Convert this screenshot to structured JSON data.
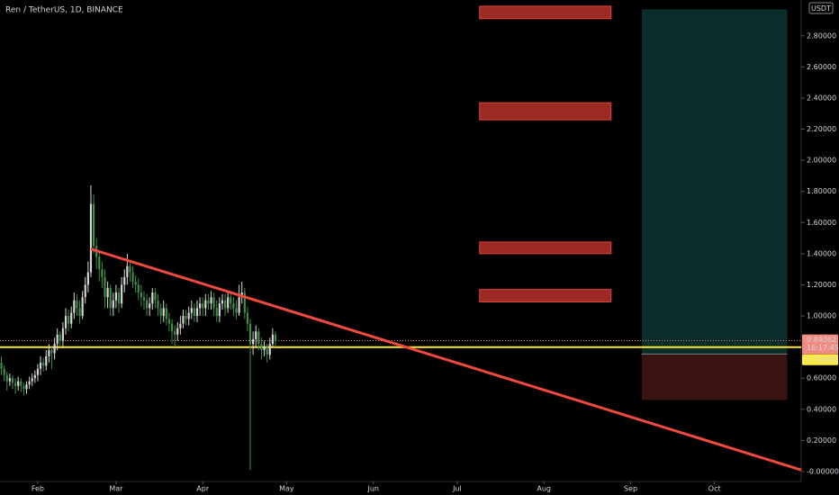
{
  "chart_data": {
    "type": "candlestick",
    "title": "Ren / TetherUS, 1D, BINANCE",
    "y_axis_unit": "USDT",
    "up_color": "#d6d6d6",
    "down_color": "#3f8f4a",
    "x": [
      19,
      20,
      21,
      22,
      23,
      24,
      25,
      26,
      27,
      28,
      29,
      30,
      31,
      32,
      33,
      34,
      35,
      36,
      37,
      38,
      39,
      40,
      41,
      42,
      43,
      44,
      45,
      46,
      47,
      48,
      49,
      50,
      51,
      52,
      53,
      54,
      55,
      56,
      57,
      58,
      59,
      60,
      61,
      62,
      63,
      64,
      65,
      66,
      67,
      68,
      69,
      70,
      71,
      72,
      73,
      74,
      75,
      76,
      77,
      78,
      79,
      80,
      81,
      82,
      83,
      84,
      85,
      86,
      87,
      88,
      89,
      90,
      91,
      92,
      93,
      94,
      95,
      96,
      97,
      98,
      99,
      100,
      101,
      102,
      103,
      104,
      105,
      106,
      107,
      108,
      109,
      110,
      111,
      112,
      113,
      114,
      115,
      116,
      117
    ],
    "open": [
      0.7,
      0.66,
      0.62,
      0.58,
      0.6,
      0.57,
      0.55,
      0.58,
      0.55,
      0.53,
      0.56,
      0.58,
      0.6,
      0.62,
      0.66,
      0.7,
      0.68,
      0.74,
      0.78,
      0.76,
      0.82,
      0.88,
      0.84,
      0.92,
      1.0,
      0.95,
      1.02,
      1.1,
      1.05,
      1.0,
      1.12,
      1.2,
      1.28,
      1.72,
      1.45,
      1.38,
      1.3,
      1.25,
      1.12,
      1.18,
      1.05,
      1.1,
      1.15,
      1.08,
      1.2,
      1.25,
      1.32,
      1.28,
      1.22,
      1.2,
      1.15,
      1.12,
      1.1,
      1.05,
      1.08,
      1.15,
      1.1,
      1.05,
      1.0,
      1.05,
      0.98,
      0.95,
      0.9,
      0.88,
      0.92,
      0.95,
      1.0,
      0.98,
      1.02,
      1.05,
      1.0,
      1.05,
      1.08,
      1.05,
      1.1,
      1.08,
      1.12,
      1.05,
      1.0,
      1.08,
      1.1,
      1.05,
      1.12,
      1.08,
      1.05,
      1.02,
      1.12,
      1.15,
      1.02,
      0.95,
      0.82,
      0.85,
      0.9,
      0.82,
      0.78,
      0.8,
      0.75,
      0.82,
      0.88
    ],
    "high": [
      0.74,
      0.68,
      0.64,
      0.63,
      0.62,
      0.6,
      0.61,
      0.6,
      0.57,
      0.58,
      0.61,
      0.63,
      0.65,
      0.69,
      0.74,
      0.73,
      0.78,
      0.82,
      0.8,
      0.86,
      0.92,
      0.9,
      0.96,
      1.05,
      1.04,
      1.06,
      1.15,
      1.14,
      1.1,
      1.16,
      1.25,
      1.35,
      1.84,
      1.78,
      1.5,
      1.42,
      1.35,
      1.3,
      1.22,
      1.2,
      1.15,
      1.2,
      1.18,
      1.25,
      1.3,
      1.4,
      1.36,
      1.32,
      1.26,
      1.24,
      1.2,
      1.16,
      1.14,
      1.12,
      1.18,
      1.18,
      1.14,
      1.08,
      1.1,
      1.08,
      1.02,
      0.98,
      0.94,
      0.96,
      1.0,
      1.04,
      1.04,
      1.06,
      1.1,
      1.08,
      1.1,
      1.12,
      1.12,
      1.14,
      1.14,
      1.16,
      1.15,
      1.1,
      1.12,
      1.14,
      1.14,
      1.16,
      1.16,
      1.12,
      1.1,
      1.2,
      1.22,
      1.18,
      1.06,
      0.98,
      0.9,
      0.94,
      0.92,
      0.86,
      0.84,
      0.82,
      0.86,
      0.92,
      0.9
    ],
    "low": [
      0.62,
      0.58,
      0.52,
      0.55,
      0.53,
      0.5,
      0.52,
      0.51,
      0.49,
      0.5,
      0.53,
      0.55,
      0.57,
      0.58,
      0.62,
      0.64,
      0.65,
      0.7,
      0.66,
      0.72,
      0.78,
      0.8,
      0.8,
      0.88,
      0.9,
      0.92,
      0.98,
      1.0,
      0.95,
      0.98,
      1.08,
      1.15,
      1.25,
      1.4,
      1.3,
      1.22,
      1.18,
      1.05,
      1.05,
      1.0,
      1.0,
      1.05,
      1.02,
      1.05,
      1.15,
      1.2,
      1.22,
      1.18,
      1.15,
      1.1,
      1.06,
      1.04,
      1.0,
      1.0,
      1.04,
      1.05,
      1.0,
      0.95,
      0.96,
      0.94,
      0.9,
      0.82,
      0.8,
      0.84,
      0.88,
      0.92,
      0.94,
      0.94,
      0.98,
      0.96,
      0.96,
      1.0,
      1.0,
      1.0,
      1.04,
      1.04,
      1.0,
      0.96,
      0.96,
      1.04,
      1.0,
      1.02,
      1.04,
      1.0,
      0.98,
      1.0,
      1.08,
      0.98,
      0.9,
      0.01,
      0.75,
      0.8,
      0.78,
      0.72,
      0.74,
      0.7,
      0.72,
      0.8,
      0.8
    ],
    "close": [
      0.66,
      0.62,
      0.58,
      0.6,
      0.57,
      0.55,
      0.58,
      0.55,
      0.53,
      0.56,
      0.58,
      0.6,
      0.62,
      0.66,
      0.7,
      0.68,
      0.74,
      0.78,
      0.76,
      0.82,
      0.88,
      0.84,
      0.92,
      1.0,
      0.95,
      1.02,
      1.1,
      1.05,
      1.0,
      1.12,
      1.2,
      1.28,
      1.72,
      1.45,
      1.38,
      1.3,
      1.25,
      1.12,
      1.18,
      1.05,
      1.1,
      1.15,
      1.08,
      1.2,
      1.25,
      1.32,
      1.28,
      1.22,
      1.2,
      1.15,
      1.12,
      1.1,
      1.05,
      1.08,
      1.15,
      1.1,
      1.05,
      1.0,
      1.05,
      0.98,
      0.95,
      0.9,
      0.88,
      0.92,
      0.95,
      1.0,
      0.98,
      1.02,
      1.05,
      1.0,
      1.05,
      1.08,
      1.05,
      1.1,
      1.08,
      1.12,
      1.05,
      1.0,
      1.08,
      1.1,
      1.05,
      1.12,
      1.08,
      1.05,
      1.02,
      1.12,
      1.15,
      1.02,
      0.95,
      0.82,
      0.85,
      0.9,
      0.82,
      0.78,
      0.8,
      0.75,
      0.82,
      0.88,
      0.84
    ],
    "trendline": {
      "x": [
        51,
        305
      ],
      "y": [
        1.43,
        0.01
      ],
      "color": "#f04a3e"
    },
    "level": 0.79905,
    "level_color": "#ffeb3b",
    "last_price": 0.84062,
    "last_price_color": "#f28b82",
    "countdown": "16:17:45",
    "zones": [
      {
        "x": [
          190,
          237
        ],
        "low": 2.91,
        "high": 2.99
      },
      {
        "x": [
          190,
          237
        ],
        "low": 2.26,
        "high": 2.37
      },
      {
        "x": [
          190,
          237
        ],
        "low": 1.4,
        "high": 1.475
      },
      {
        "x": [
          190,
          237
        ],
        "low": 1.09,
        "high": 1.17
      }
    ],
    "zone_color": "#9b2a24",
    "long_position": {
      "x": [
        248,
        300
      ],
      "entry": 0.755,
      "target": 2.97,
      "stop": 0.46,
      "target_color": "#0b2e2a",
      "stop_color": "#3a1212"
    },
    "xlim": [
      18.5,
      305
    ],
    "xticks": [
      {
        "value": 32,
        "label": "Feb"
      },
      {
        "value": 60,
        "label": "Mar"
      },
      {
        "value": 91,
        "label": "Apr"
      },
      {
        "value": 121,
        "label": "May"
      },
      {
        "value": 152,
        "label": "Jun"
      },
      {
        "value": 182,
        "label": "Jul"
      },
      {
        "value": 213,
        "label": "Aug"
      },
      {
        "value": 244,
        "label": "Sep"
      },
      {
        "value": 274,
        "label": "Oct"
      }
    ],
    "ylim": [
      -0.064,
      3.03
    ],
    "yticks": [
      {
        "value": 0,
        "label": "-0.00000"
      },
      {
        "value": 0.2,
        "label": "0.20000"
      },
      {
        "value": 0.4,
        "label": "0.40000"
      },
      {
        "value": 0.6,
        "label": "0.60000"
      },
      {
        "value": 0.8,
        "label": "0.80000"
      },
      {
        "value": 1.0,
        "label": "1.00000"
      },
      {
        "value": 1.2,
        "label": "1.20000"
      },
      {
        "value": 1.4,
        "label": "1.40000"
      },
      {
        "value": 1.6,
        "label": "1.60000"
      },
      {
        "value": 1.8,
        "label": "1.80000"
      },
      {
        "value": 2.0,
        "label": "2.00000"
      },
      {
        "value": 2.2,
        "label": "2.20000"
      },
      {
        "value": 2.4,
        "label": "2.40000"
      },
      {
        "value": 2.6,
        "label": "2.60000"
      },
      {
        "value": 2.8,
        "label": "2.80000"
      }
    ],
    "grid": false
  }
}
